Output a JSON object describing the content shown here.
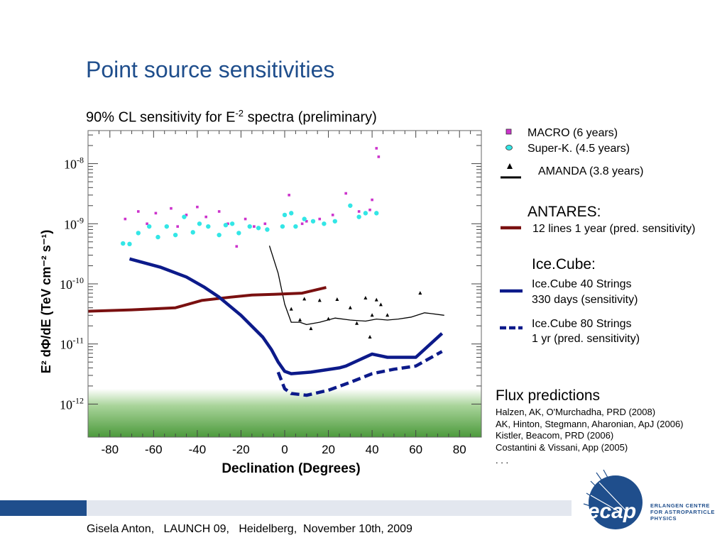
{
  "slide": {
    "title": "Point source sensitivities",
    "subtitle_pre": "90% CL sensitivity for E",
    "subtitle_sup": "-2",
    "subtitle_post": " spectra (preliminary)",
    "footer": "Gisela Anton,   LAUNCH 09,   Heidelberg,  November 10th, 2009"
  },
  "legend": {
    "macro": "MACRO (6 years)",
    "superk": "Super-K. (4.5 years)",
    "amanda": "AMANDA (3.8 years)",
    "antares_title": "ANTARES:",
    "antares_line": "12 lines 1 year (pred. sensitivity)",
    "icecube_title": "Ice.Cube:",
    "ic40_line1": "Ice.Cube 40 Strings",
    "ic40_line2": "330 days (sensitivity)",
    "ic80_line1": "Ice.Cube 80 Strings",
    "ic80_line2": "1 yr (pred. sensitivity)"
  },
  "flux": {
    "title": "Flux predictions",
    "refs": [
      "Halzen, AK, O'Murchadha, PRD (2008)",
      "AK, Hinton, Stegmann, Aharonian, ApJ (2006)",
      "Kistler, Beacom, PRD (2006)",
      "Costantini & Vissani, App (2005)",
      ". . ."
    ]
  },
  "logo": {
    "word": "ecap",
    "text": "ERLANGEN CENTRE\nFOR ASTROPARTICLE\nPHYSICS"
  },
  "colors": {
    "title": "#1f4e8c",
    "macro": "#cc33cc",
    "superk": "#33e6e6",
    "amanda": "#000000",
    "antares": "#7a1010",
    "icecube": "#0c1a8a",
    "flux_band": "#4c9a3c"
  },
  "chart_data": {
    "type": "scatter",
    "xlabel": "Declination (Degrees)",
    "ylabel": "E² dΦ/dE (TeV cm⁻² s⁻¹)",
    "xlim": [
      -90,
      90
    ],
    "ylim_log10": [
      -12.55,
      -7.45
    ],
    "xticks": [
      -80,
      -60,
      -40,
      -20,
      0,
      20,
      40,
      60,
      80
    ],
    "xtick_labels": [
      "-80",
      "-60",
      "-40",
      "-20",
      "0",
      "20",
      "40",
      "60",
      "80"
    ],
    "yticks_log10": [
      -8,
      -9,
      -10,
      -11,
      -12
    ],
    "ytick_labels": [
      {
        "base": "10",
        "exp": "-8"
      },
      {
        "base": "10",
        "exp": "-9"
      },
      {
        "base": "10",
        "exp": "-10"
      },
      {
        "base": "10",
        "exp": "-11"
      },
      {
        "base": "10",
        "exp": "-12"
      }
    ],
    "flux_band_max": 1.8e-12,
    "series": [
      {
        "name": "MACRO (6 years)",
        "kind": "points",
        "marker": "square",
        "points": [
          [
            -73,
            1.2e-09
          ],
          [
            -67,
            1.6e-09
          ],
          [
            -63,
            1e-09
          ],
          [
            -59,
            1.5e-09
          ],
          [
            -52,
            1.8e-09
          ],
          [
            -49,
            9e-10
          ],
          [
            -45,
            1.4e-09
          ],
          [
            -40,
            1.9e-09
          ],
          [
            -36,
            1.3e-09
          ],
          [
            -30,
            1.6e-09
          ],
          [
            -26,
            1e-09
          ],
          [
            -22,
            4.2e-10
          ],
          [
            -18,
            1.2e-09
          ],
          [
            -14,
            9e-10
          ],
          [
            -9,
            1e-09
          ],
          [
            2,
            3e-09
          ],
          [
            8,
            1e-09
          ],
          [
            10,
            1.1e-09
          ],
          [
            16,
            1.2e-09
          ],
          [
            22,
            1.4e-09
          ],
          [
            28,
            3.2e-09
          ],
          [
            34,
            1.6e-09
          ],
          [
            39,
            1.7e-09
          ],
          [
            40,
            2.5e-09
          ],
          [
            42,
            1.8e-08
          ],
          [
            43,
            1.3e-08
          ]
        ]
      },
      {
        "name": "Super-K. (4.5 years)",
        "kind": "points",
        "marker": "circle",
        "points": [
          [
            -74,
            4.7e-10
          ],
          [
            -71,
            4.6e-10
          ],
          [
            -67,
            7e-10
          ],
          [
            -62,
            9e-10
          ],
          [
            -58,
            6e-10
          ],
          [
            -54,
            9e-10
          ],
          [
            -50,
            6.5e-10
          ],
          [
            -46,
            1.3e-09
          ],
          [
            -42,
            7.2e-10
          ],
          [
            -39,
            1e-09
          ],
          [
            -35,
            9e-10
          ],
          [
            -30,
            6.5e-10
          ],
          [
            -27,
            9.5e-10
          ],
          [
            -24,
            1e-09
          ],
          [
            -21,
            7e-10
          ],
          [
            -16,
            9e-10
          ],
          [
            -12,
            8.5e-10
          ],
          [
            -8,
            8e-10
          ],
          [
            -1,
            9e-10
          ],
          [
            0,
            1.4e-09
          ],
          [
            3,
            1.5e-09
          ],
          [
            5,
            9e-10
          ],
          [
            9,
            1.2e-09
          ],
          [
            13,
            1.1e-09
          ],
          [
            18,
            1e-09
          ],
          [
            23,
            1.1e-09
          ],
          [
            30,
            2e-09
          ],
          [
            34,
            1.3e-09
          ],
          [
            37,
            1.5e-09
          ],
          [
            42,
            1.5e-09
          ]
        ]
      },
      {
        "name": "AMANDA (3.8 years)",
        "kind": "points",
        "marker": "triangle",
        "points": [
          [
            3,
            3.8e-11
          ],
          [
            7,
            2.5e-11
          ],
          [
            9,
            5.6e-11
          ],
          [
            12,
            1.8e-11
          ],
          [
            16,
            5.3e-11
          ],
          [
            20,
            2.6e-11
          ],
          [
            24,
            5.5e-11
          ],
          [
            30,
            4e-11
          ],
          [
            33,
            2.2e-11
          ],
          [
            37,
            5.8e-11
          ],
          [
            39,
            1.3e-11
          ],
          [
            40,
            3e-11
          ],
          [
            42,
            5.4e-11
          ],
          [
            44,
            4.5e-11
          ],
          [
            47,
            3e-11
          ],
          [
            62,
            7e-11
          ]
        ]
      },
      {
        "name": "AMANDA (3.8 years)",
        "kind": "line",
        "style": "solid-thin",
        "points": [
          [
            -7,
            4.3e-10
          ],
          [
            -3,
            1.5e-10
          ],
          [
            0,
            4.6e-11
          ],
          [
            3,
            2.3e-11
          ],
          [
            7,
            2.3e-11
          ],
          [
            10,
            2.1e-11
          ],
          [
            16,
            2.3e-11
          ],
          [
            23,
            2.7e-11
          ],
          [
            30,
            2.5e-11
          ],
          [
            37,
            2.4e-11
          ],
          [
            42,
            2.6e-11
          ],
          [
            47,
            2.5e-11
          ],
          [
            52,
            2.6e-11
          ],
          [
            58,
            2.8e-11
          ],
          [
            64,
            3.3e-11
          ],
          [
            67,
            3.2e-11
          ],
          [
            73,
            3e-11
          ]
        ]
      },
      {
        "name": "ANTARES 12 lines 1 year (pred. sensitivity)",
        "kind": "line",
        "style": "solid-thick",
        "points": [
          [
            -90,
            3.5e-11
          ],
          [
            -70,
            3.7e-11
          ],
          [
            -50,
            4e-11
          ],
          [
            -38,
            5.3e-11
          ],
          [
            -25,
            6e-11
          ],
          [
            -15,
            6.5e-11
          ],
          [
            -5,
            6.7e-11
          ],
          [
            8,
            7e-11
          ],
          [
            19,
            8.7e-11
          ]
        ]
      },
      {
        "name": "Ice.Cube 40 Strings 330 days (sensitivity)",
        "kind": "line",
        "style": "solid-thick",
        "points": [
          [
            -71,
            2.6e-10
          ],
          [
            -57,
            1.9e-10
          ],
          [
            -45,
            1.3e-10
          ],
          [
            -37,
            8.9e-11
          ],
          [
            -30,
            6e-11
          ],
          [
            -20,
            3e-11
          ],
          [
            -10,
            1.3e-11
          ],
          [
            -6,
            8e-12
          ],
          [
            -3,
            5e-12
          ],
          [
            0,
            3.5e-12
          ],
          [
            3,
            3.2e-12
          ],
          [
            12,
            3.4e-12
          ],
          [
            25,
            4e-12
          ],
          [
            28,
            4.3e-12
          ],
          [
            40,
            6.8e-12
          ],
          [
            47,
            6e-12
          ],
          [
            60,
            6e-12
          ],
          [
            72,
            1.5e-11
          ]
        ]
      },
      {
        "name": "Ice.Cube 80 Strings 1 yr (pred. sensitivity)",
        "kind": "line",
        "style": "dashed-thick",
        "points": [
          [
            -3,
            3.4e-12
          ],
          [
            0,
            1.8e-12
          ],
          [
            3,
            1.5e-12
          ],
          [
            10,
            1.4e-12
          ],
          [
            20,
            1.7e-12
          ],
          [
            30,
            2.3e-12
          ],
          [
            40,
            3.2e-12
          ],
          [
            50,
            3.8e-12
          ],
          [
            60,
            4.3e-12
          ],
          [
            72,
            7.5e-12
          ]
        ]
      }
    ]
  }
}
